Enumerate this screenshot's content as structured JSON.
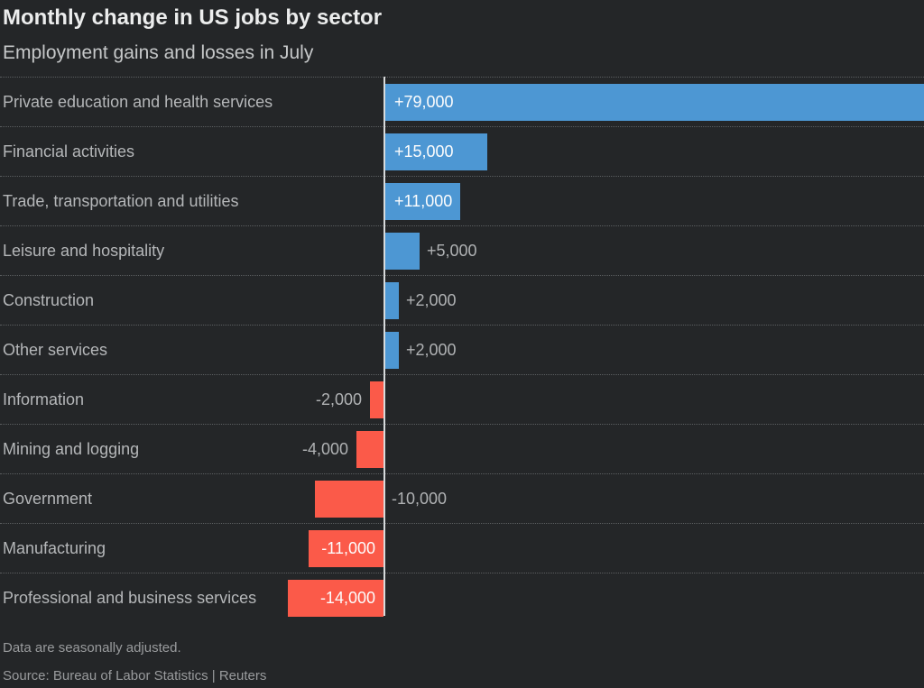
{
  "header": {
    "title": "Monthly change in US jobs by sector",
    "subtitle": "Employment gains and losses in July"
  },
  "footer": {
    "note": "Data are seasonally adjusted.",
    "source": "Source: Bureau of Labor Statistics | Reuters"
  },
  "colors": {
    "background": "#242628",
    "positive_bar": "#4d97d3",
    "negative_bar": "#fb5a49",
    "axis_line": "#d8dadb",
    "label_inside_bar": "#fdfdfd",
    "label_outside_bar": "#b0b2b4",
    "category_label": "#b5b7b9"
  },
  "chart_data": {
    "type": "bar",
    "orientation": "horizontal",
    "title": "Monthly change in US jobs by sector",
    "subtitle": "Employment gains and losses in July",
    "grid": "dotted-row-separators",
    "legend": "none",
    "axis_range": [
      -14000,
      79000
    ],
    "categories": [
      "Private education and health services",
      "Financial activities",
      "Trade, transportation and utilities",
      "Leisure and hospitality",
      "Construction",
      "Other services",
      "Information",
      "Mining and logging",
      "Government",
      "Manufacturing",
      "Professional and business services"
    ],
    "values": [
      79000,
      15000,
      11000,
      5000,
      2000,
      2000,
      -2000,
      -4000,
      -10000,
      -11000,
      -14000
    ],
    "value_labels": [
      "+79,000",
      "+15,000",
      "+11,000",
      "+5,000",
      "+2,000",
      "+2,000",
      "-2,000",
      "-4,000",
      "-10,000",
      "-11,000",
      "-14,000"
    ],
    "value_label_placement": [
      "inside",
      "inside",
      "inside",
      "outside",
      "outside",
      "outside",
      "outside",
      "outside",
      "opposite",
      "inside",
      "inside"
    ]
  }
}
